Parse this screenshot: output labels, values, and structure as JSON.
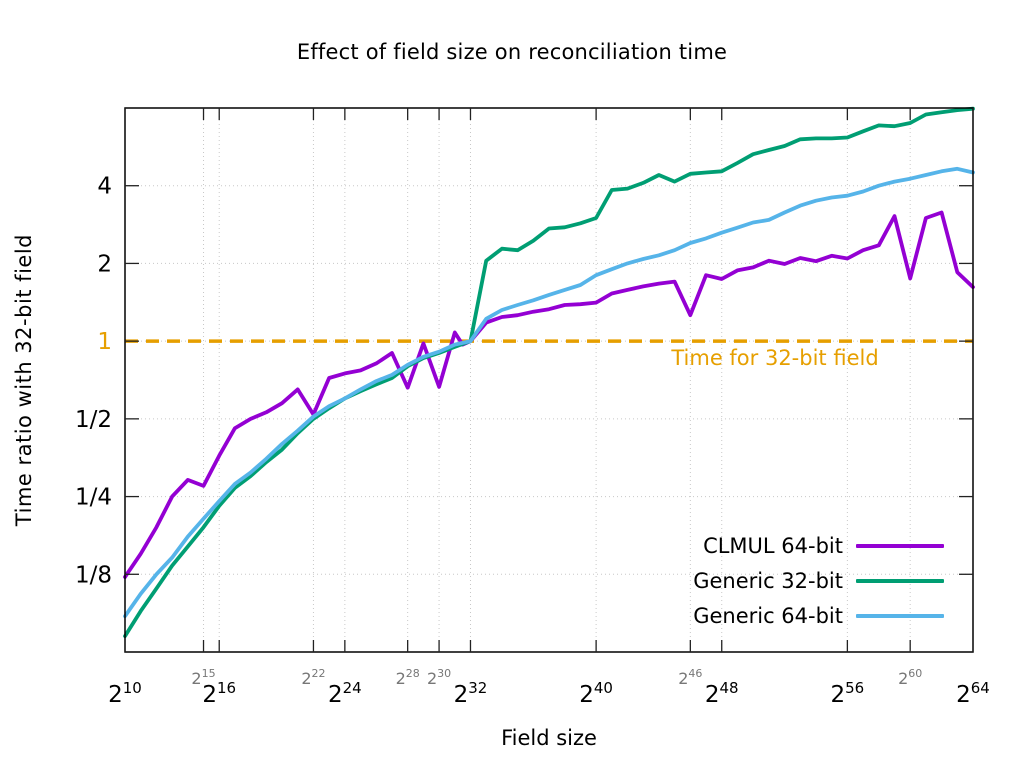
{
  "title": "Effect of field size on reconciliation time",
  "chart_data": {
    "type": "line",
    "title": "Effect of field size on reconciliation time",
    "xlabel": "Field size",
    "ylabel": "Time ratio with 32-bit field",
    "grid": true,
    "legend_position": "inside bottom right",
    "x_axis": {
      "label": "Field size",
      "scale": "log2",
      "tick_base": "2",
      "min_exp": 10,
      "max_exp": 64,
      "major_ticks": [
        10,
        16,
        24,
        32,
        40,
        48,
        56,
        64
      ],
      "minor_ticks": [
        15,
        22,
        28,
        30,
        46,
        60
      ]
    },
    "y_axis": {
      "label": "Time ratio with 32-bit field",
      "scale": "log2",
      "min": 0.0625,
      "max": 8,
      "ticks": [
        {
          "value": 4,
          "label": "4",
          "color": "#000000"
        },
        {
          "value": 2,
          "label": "2",
          "color": "#000000"
        },
        {
          "value": 1,
          "label": "1",
          "color": "#E69F00"
        },
        {
          "value": 0.5,
          "label": "1/2",
          "color": "#000000"
        },
        {
          "value": 0.25,
          "label": "1/4",
          "color": "#000000"
        },
        {
          "value": 0.125,
          "label": "1/8",
          "color": "#000000"
        }
      ]
    },
    "reference_line": {
      "y": 1,
      "label": "Time for 32-bit field",
      "color": "#E69F00",
      "style": "dashed"
    },
    "series": [
      {
        "name": "CLMUL 64-bit",
        "color": "#9400D3",
        "points": [
          [
            10,
            0.122
          ],
          [
            11,
            0.15
          ],
          [
            12,
            0.19
          ],
          [
            13,
            0.25
          ],
          [
            14,
            0.29
          ],
          [
            15,
            0.275
          ],
          [
            16,
            0.36
          ],
          [
            17,
            0.46
          ],
          [
            18,
            0.5
          ],
          [
            19,
            0.53
          ],
          [
            20,
            0.575
          ],
          [
            21,
            0.65
          ],
          [
            22,
            0.52
          ],
          [
            23,
            0.72
          ],
          [
            24,
            0.75
          ],
          [
            25,
            0.77
          ],
          [
            26,
            0.82
          ],
          [
            27,
            0.9
          ],
          [
            28,
            0.66
          ],
          [
            29,
            0.98
          ],
          [
            30,
            0.665
          ],
          [
            31,
            1.08
          ],
          [
            31.5,
            0.97
          ],
          [
            32,
            1.0
          ],
          [
            33,
            1.18
          ],
          [
            34,
            1.24
          ],
          [
            35,
            1.26
          ],
          [
            36,
            1.3
          ],
          [
            37,
            1.33
          ],
          [
            38,
            1.38
          ],
          [
            39,
            1.39
          ],
          [
            40,
            1.41
          ],
          [
            41,
            1.53
          ],
          [
            42,
            1.58
          ],
          [
            43,
            1.63
          ],
          [
            44,
            1.67
          ],
          [
            45,
            1.7
          ],
          [
            46,
            1.26
          ],
          [
            47,
            1.8
          ],
          [
            48,
            1.74
          ],
          [
            49,
            1.88
          ],
          [
            50,
            1.93
          ],
          [
            51,
            2.05
          ],
          [
            52,
            1.99
          ],
          [
            53,
            2.1
          ],
          [
            54,
            2.04
          ],
          [
            55,
            2.14
          ],
          [
            56,
            2.09
          ],
          [
            57,
            2.25
          ],
          [
            58,
            2.35
          ],
          [
            59,
            3.05
          ],
          [
            60,
            1.75
          ],
          [
            61,
            3.0
          ],
          [
            62,
            3.15
          ],
          [
            63,
            1.85
          ],
          [
            64,
            1.62
          ]
        ]
      },
      {
        "name": "Generic 32-bit",
        "color": "#009E73",
        "points": [
          [
            10,
            0.072
          ],
          [
            11,
            0.09
          ],
          [
            12,
            0.11
          ],
          [
            13,
            0.135
          ],
          [
            14,
            0.16
          ],
          [
            15,
            0.19
          ],
          [
            16,
            0.23
          ],
          [
            17,
            0.27
          ],
          [
            18,
            0.3
          ],
          [
            19,
            0.34
          ],
          [
            20,
            0.38
          ],
          [
            21,
            0.44
          ],
          [
            22,
            0.5
          ],
          [
            23,
            0.55
          ],
          [
            24,
            0.6
          ],
          [
            25,
            0.64
          ],
          [
            26,
            0.68
          ],
          [
            27,
            0.72
          ],
          [
            28,
            0.8
          ],
          [
            29,
            0.86
          ],
          [
            30,
            0.9
          ],
          [
            31,
            0.95
          ],
          [
            32,
            1.0
          ],
          [
            33,
            2.05
          ],
          [
            34,
            2.28
          ],
          [
            35,
            2.25
          ],
          [
            36,
            2.45
          ],
          [
            37,
            2.73
          ],
          [
            38,
            2.76
          ],
          [
            39,
            2.86
          ],
          [
            40,
            3.0
          ],
          [
            41,
            3.85
          ],
          [
            42,
            3.9
          ],
          [
            43,
            4.1
          ],
          [
            44,
            4.4
          ],
          [
            45,
            4.15
          ],
          [
            46,
            4.45
          ],
          [
            47,
            4.5
          ],
          [
            48,
            4.55
          ],
          [
            49,
            4.9
          ],
          [
            50,
            5.3
          ],
          [
            51,
            5.5
          ],
          [
            52,
            5.7
          ],
          [
            53,
            6.05
          ],
          [
            54,
            6.1
          ],
          [
            55,
            6.1
          ],
          [
            56,
            6.15
          ],
          [
            57,
            6.5
          ],
          [
            58,
            6.85
          ],
          [
            59,
            6.8
          ],
          [
            60,
            7.0
          ],
          [
            61,
            7.55
          ],
          [
            62,
            7.7
          ],
          [
            63,
            7.85
          ],
          [
            64,
            7.95
          ]
        ]
      },
      {
        "name": "Generic 64-bit",
        "color": "#56B4E9",
        "points": [
          [
            10,
            0.086
          ],
          [
            11,
            0.105
          ],
          [
            12,
            0.125
          ],
          [
            13,
            0.145
          ],
          [
            14,
            0.175
          ],
          [
            15,
            0.205
          ],
          [
            16,
            0.24
          ],
          [
            17,
            0.28
          ],
          [
            18,
            0.31
          ],
          [
            19,
            0.35
          ],
          [
            20,
            0.4
          ],
          [
            21,
            0.45
          ],
          [
            22,
            0.51
          ],
          [
            23,
            0.56
          ],
          [
            24,
            0.6
          ],
          [
            25,
            0.65
          ],
          [
            26,
            0.7
          ],
          [
            27,
            0.74
          ],
          [
            28,
            0.81
          ],
          [
            29,
            0.87
          ],
          [
            30,
            0.91
          ],
          [
            31,
            0.97
          ],
          [
            32,
            1.0
          ],
          [
            33,
            1.22
          ],
          [
            34,
            1.32
          ],
          [
            35,
            1.38
          ],
          [
            36,
            1.44
          ],
          [
            37,
            1.51
          ],
          [
            38,
            1.58
          ],
          [
            39,
            1.65
          ],
          [
            40,
            1.8
          ],
          [
            41,
            1.9
          ],
          [
            42,
            2.0
          ],
          [
            43,
            2.08
          ],
          [
            44,
            2.15
          ],
          [
            45,
            2.25
          ],
          [
            46,
            2.4
          ],
          [
            47,
            2.5
          ],
          [
            48,
            2.63
          ],
          [
            49,
            2.75
          ],
          [
            50,
            2.88
          ],
          [
            51,
            2.95
          ],
          [
            52,
            3.15
          ],
          [
            53,
            3.35
          ],
          [
            54,
            3.5
          ],
          [
            55,
            3.6
          ],
          [
            56,
            3.66
          ],
          [
            57,
            3.8
          ],
          [
            58,
            4.0
          ],
          [
            59,
            4.15
          ],
          [
            60,
            4.26
          ],
          [
            61,
            4.4
          ],
          [
            62,
            4.55
          ],
          [
            63,
            4.65
          ],
          [
            64,
            4.5
          ]
        ]
      }
    ]
  },
  "colors": {
    "background": "#FFFFFF",
    "border": "#000000",
    "grid": "#C8C8C8",
    "minor_tick_label": "#777777",
    "reference": "#E69F00",
    "series_purple": "#9400D3",
    "series_green": "#009E73",
    "series_blue": "#56B4E9"
  }
}
